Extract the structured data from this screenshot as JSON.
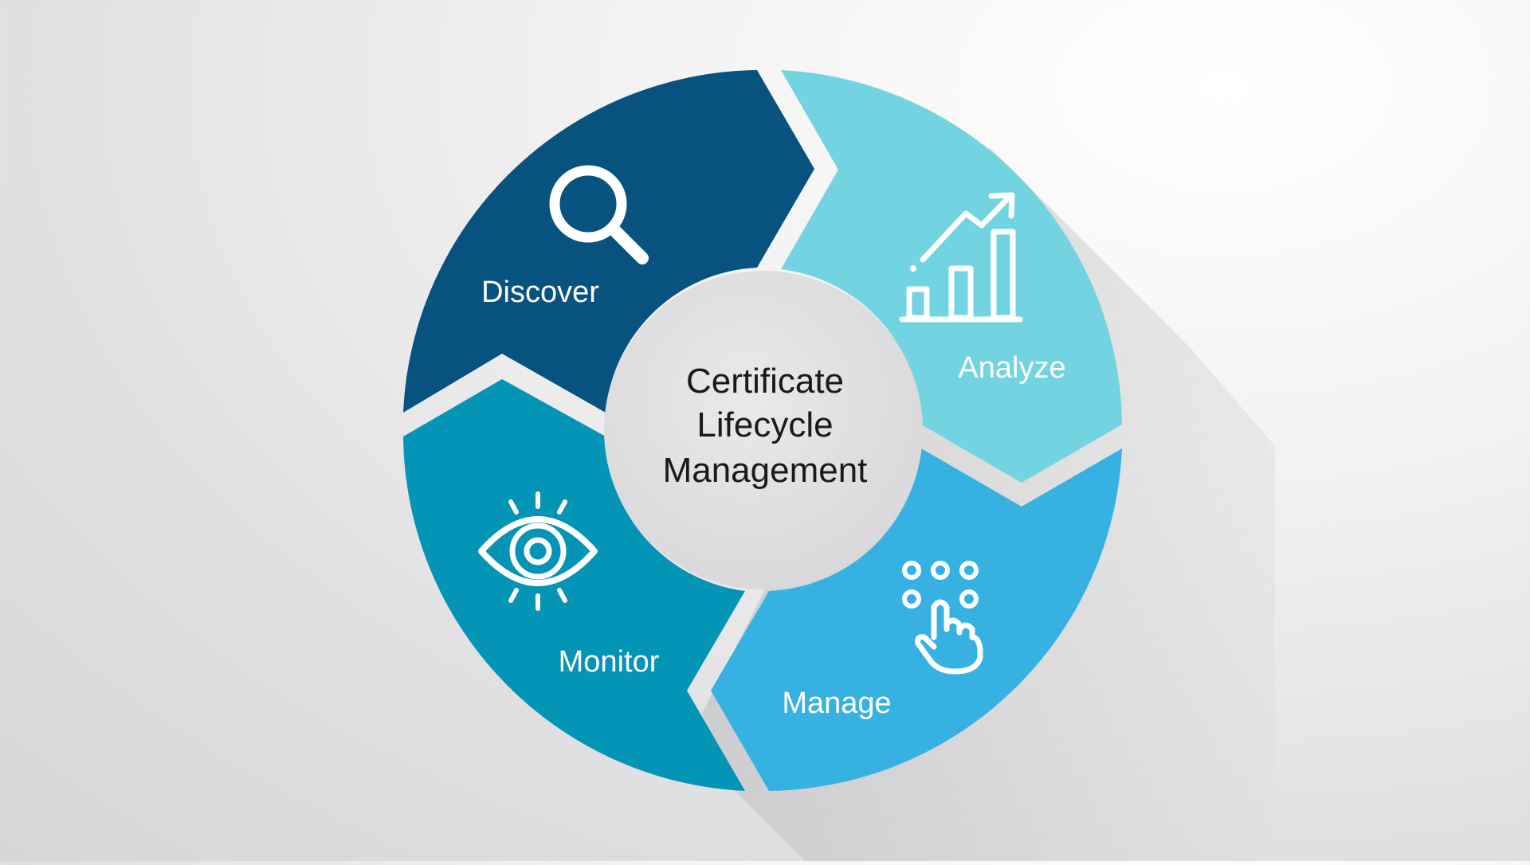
{
  "diagram": {
    "center": {
      "lines": [
        "Certificate",
        "Lifecycle",
        "Management"
      ]
    },
    "segments": [
      {
        "id": "discover",
        "label": "Discover",
        "icon": "magnifier-icon",
        "color": "#07527f"
      },
      {
        "id": "analyze",
        "label": "Analyze",
        "icon": "growth-chart-icon",
        "color": "#72d4e0"
      },
      {
        "id": "manage",
        "label": "Manage",
        "icon": "touch-keypad-icon",
        "color": "#36b1e2"
      },
      {
        "id": "monitor",
        "label": "Monitor",
        "icon": "eye-icon",
        "color": "#0494b6"
      }
    ]
  }
}
